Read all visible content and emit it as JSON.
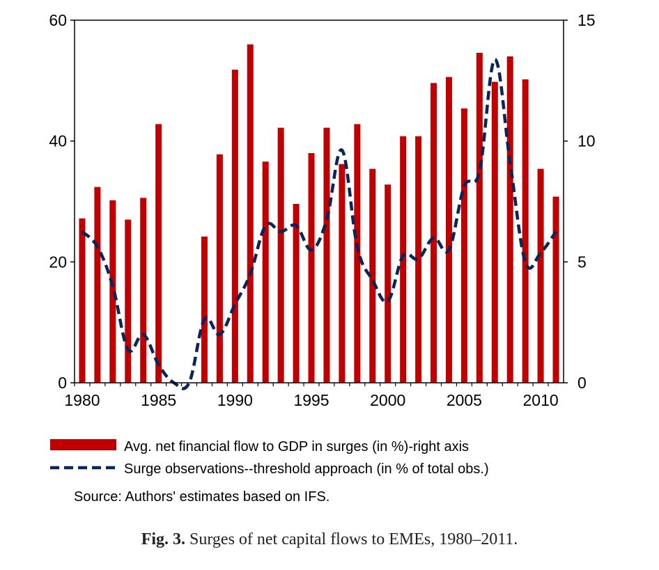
{
  "chart_data": {
    "type": "bar",
    "x": [
      1980,
      1981,
      1982,
      1983,
      1984,
      1985,
      1986,
      1987,
      1988,
      1989,
      1990,
      1991,
      1992,
      1993,
      1994,
      1995,
      1996,
      1997,
      1998,
      1999,
      2000,
      2001,
      2002,
      2003,
      2004,
      2005,
      2006,
      2007,
      2008,
      2009,
      2010,
      2011
    ],
    "x_tick_labels": [
      "1980",
      "1985",
      "1990",
      "1995",
      "2000",
      "2005",
      "2010"
    ],
    "series": [
      {
        "name": "Avg. net financial flow to GDP in surges (in %)-right axis",
        "type": "bar",
        "axis": "right",
        "color": "#c00000",
        "values": [
          6.8,
          8.1,
          7.55,
          6.75,
          7.65,
          10.7,
          null,
          null,
          6.05,
          9.45,
          12.95,
          14.0,
          9.15,
          10.55,
          7.4,
          9.5,
          10.55,
          9.05,
          10.7,
          8.85,
          8.2,
          10.2,
          10.2,
          12.4,
          12.65,
          11.35,
          13.65,
          12.45,
          13.5,
          12.55,
          8.85,
          7.7
        ]
      },
      {
        "name": "Surge observations--threshold approach (in % of total obs.)",
        "type": "line",
        "axis": "left",
        "style": "dashed",
        "color": "#0b2559",
        "values": [
          25,
          22.5,
          16,
          5.5,
          8,
          3,
          0,
          0,
          10.5,
          8,
          13,
          18,
          26,
          25,
          26,
          22,
          27,
          38.5,
          22.5,
          17,
          13.5,
          21,
          20.5,
          24,
          22,
          32.5,
          35,
          53.5,
          36.5,
          20,
          21.5,
          25
        ]
      }
    ],
    "y_left": {
      "ylim": [
        0,
        60
      ],
      "ticks": [
        "0",
        "20",
        "40",
        "60"
      ]
    },
    "y_right": {
      "ylim": [
        0,
        15
      ],
      "ticks": [
        "0",
        "5",
        "10",
        "15"
      ]
    },
    "source_note": "Source: Authors' estimates based on IFS.",
    "legend_placement": "bottom"
  },
  "caption": {
    "label": "Fig. 3.",
    "text": " Surges of net capital flows to EMEs, 1980–2011."
  }
}
